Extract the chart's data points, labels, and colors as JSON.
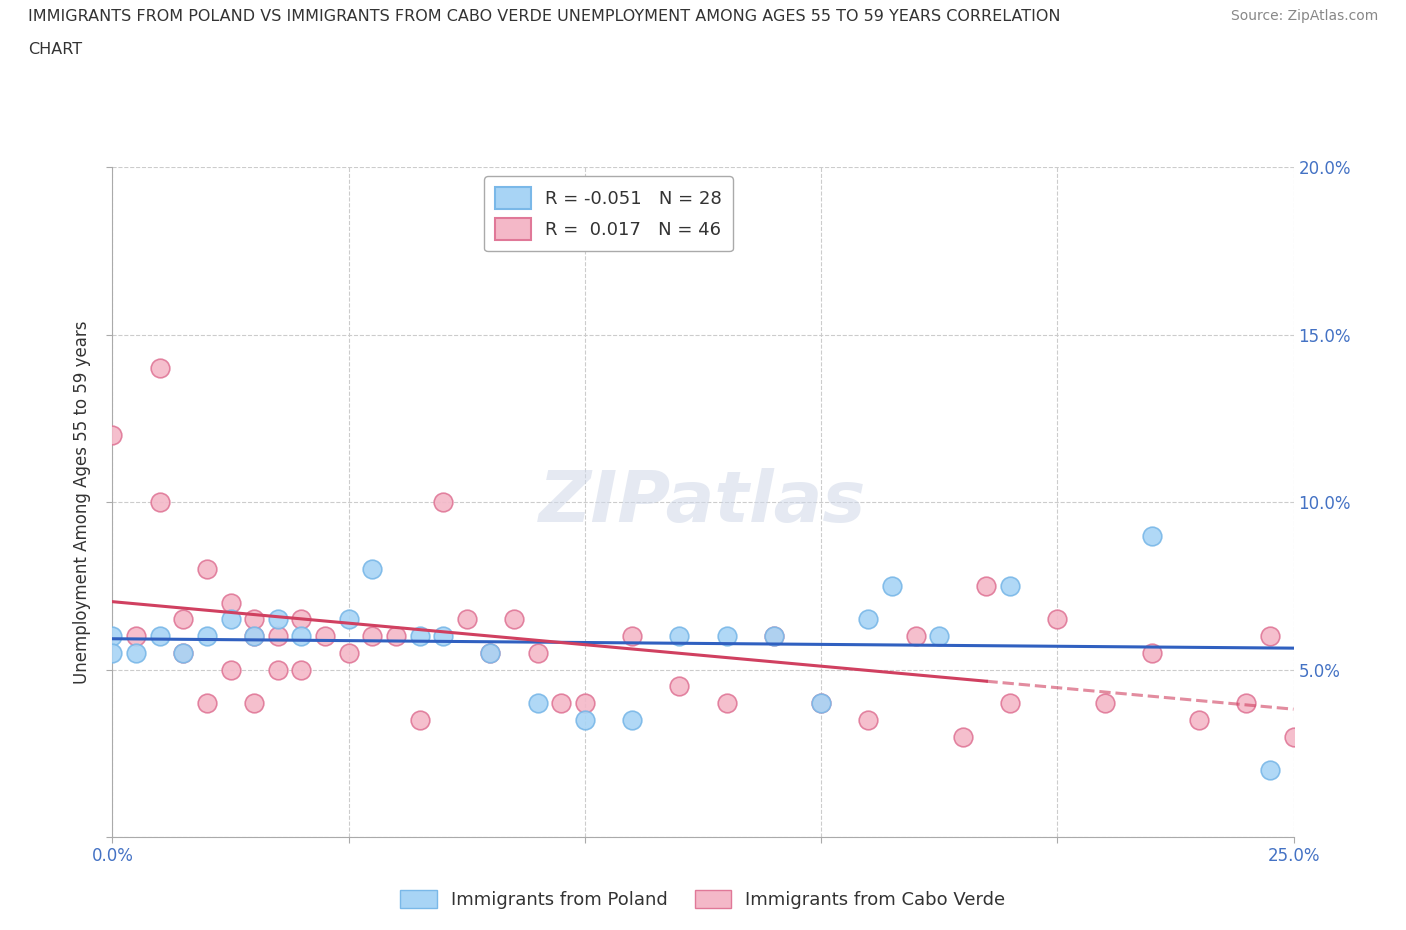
{
  "title_line1": "IMMIGRANTS FROM POLAND VS IMMIGRANTS FROM CABO VERDE UNEMPLOYMENT AMONG AGES 55 TO 59 YEARS CORRELATION",
  "title_line2": "CHART",
  "source": "Source: ZipAtlas.com",
  "ylabel": "Unemployment Among Ages 55 to 59 years",
  "xlim": [
    0.0,
    0.25
  ],
  "ylim": [
    0.0,
    0.2
  ],
  "xtick_positions": [
    0.0,
    0.05,
    0.1,
    0.15,
    0.2,
    0.25
  ],
  "ytick_positions": [
    0.0,
    0.05,
    0.1,
    0.15,
    0.2
  ],
  "xtick_labels": [
    "0.0%",
    "",
    "",
    "",
    "",
    "25.0%"
  ],
  "ytick_labels_right": [
    "",
    "5.0%",
    "10.0%",
    "15.0%",
    "20.0%"
  ],
  "poland_scatter_color": "#a8d4f5",
  "poland_scatter_edge": "#7ab8e8",
  "cabo_scatter_color": "#f4b8c8",
  "cabo_scatter_edge": "#e07898",
  "poland_line_color": "#3060c0",
  "cabo_line_color": "#d04060",
  "watermark": "ZIPatlas",
  "poland_label": "Immigrants from Poland",
  "cabo_label": "Immigrants from Cabo Verde",
  "legend_poland": "R = -0.051   N = 28",
  "legend_cabo": "R =  0.017   N = 46",
  "poland_x": [
    0.0,
    0.0,
    0.005,
    0.01,
    0.015,
    0.02,
    0.025,
    0.03,
    0.035,
    0.04,
    0.05,
    0.055,
    0.065,
    0.07,
    0.08,
    0.09,
    0.1,
    0.11,
    0.12,
    0.13,
    0.14,
    0.15,
    0.16,
    0.165,
    0.175,
    0.19,
    0.22,
    0.245
  ],
  "poland_y": [
    0.06,
    0.055,
    0.055,
    0.06,
    0.055,
    0.06,
    0.065,
    0.06,
    0.065,
    0.06,
    0.065,
    0.08,
    0.06,
    0.06,
    0.055,
    0.04,
    0.035,
    0.035,
    0.06,
    0.06,
    0.06,
    0.04,
    0.065,
    0.075,
    0.06,
    0.075,
    0.09,
    0.02
  ],
  "cabo_x": [
    0.0,
    0.005,
    0.01,
    0.01,
    0.015,
    0.015,
    0.02,
    0.02,
    0.025,
    0.025,
    0.03,
    0.03,
    0.03,
    0.035,
    0.035,
    0.04,
    0.04,
    0.045,
    0.05,
    0.055,
    0.06,
    0.065,
    0.07,
    0.075,
    0.08,
    0.085,
    0.09,
    0.095,
    0.1,
    0.11,
    0.12,
    0.13,
    0.14,
    0.15,
    0.16,
    0.17,
    0.18,
    0.185,
    0.19,
    0.2,
    0.21,
    0.22,
    0.23,
    0.24,
    0.245,
    0.25
  ],
  "cabo_y": [
    0.12,
    0.06,
    0.1,
    0.14,
    0.055,
    0.065,
    0.04,
    0.08,
    0.05,
    0.07,
    0.04,
    0.06,
    0.065,
    0.05,
    0.06,
    0.05,
    0.065,
    0.06,
    0.055,
    0.06,
    0.06,
    0.035,
    0.1,
    0.065,
    0.055,
    0.065,
    0.055,
    0.04,
    0.04,
    0.06,
    0.045,
    0.04,
    0.06,
    0.04,
    0.035,
    0.06,
    0.03,
    0.075,
    0.04,
    0.065,
    0.04,
    0.055,
    0.035,
    0.04,
    0.06,
    0.03
  ]
}
